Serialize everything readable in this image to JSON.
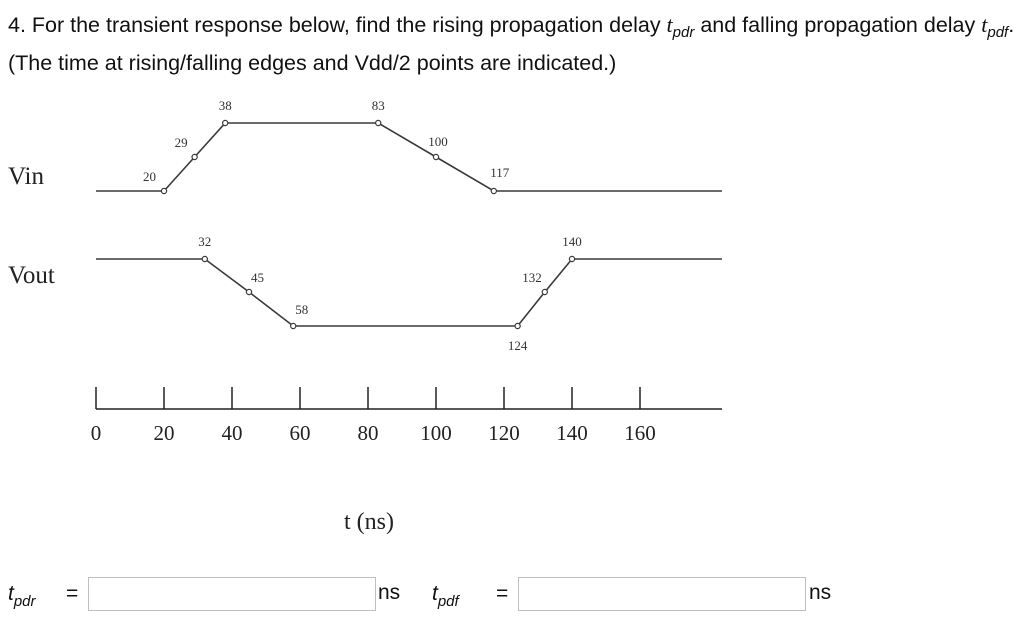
{
  "question": {
    "prefix": "4. For the transient response below, find the rising propagation delay ",
    "t": "t",
    "pdr": "pdr",
    "mid": " and falling propagation delay ",
    "pdf": "pdf",
    "suffix": ". (The time at rising/falling edges and Vdd/2 points are indicated.)"
  },
  "signals": {
    "vin": {
      "label": "Vin",
      "points": [
        {
          "t": 20,
          "level": "low",
          "label": "20"
        },
        {
          "t": 29,
          "level": "mid",
          "label": "29"
        },
        {
          "t": 38,
          "level": "high",
          "label": "38"
        },
        {
          "t": 83,
          "level": "high",
          "label": "83"
        },
        {
          "t": 100,
          "level": "mid",
          "label": "100"
        },
        {
          "t": 117,
          "level": "low",
          "label": "117"
        }
      ]
    },
    "vout": {
      "label": "Vout",
      "points": [
        {
          "t": 32,
          "level": "high",
          "label": "32"
        },
        {
          "t": 45,
          "level": "mid",
          "label": "45"
        },
        {
          "t": 58,
          "level": "low",
          "label": "58"
        },
        {
          "t": 124,
          "level": "low",
          "label": "124"
        },
        {
          "t": 132,
          "level": "mid",
          "label": "132"
        },
        {
          "t": 140,
          "level": "high",
          "label": "140"
        }
      ]
    }
  },
  "time_axis": {
    "ticks": [
      "0",
      "20",
      "40",
      "60",
      "80",
      "100",
      "120",
      "140",
      "160"
    ],
    "title": "t (ns)"
  },
  "answers": {
    "t": "t",
    "pdr_sub": "pdr",
    "pdf_sub": "pdf",
    "equals": "=",
    "pdr_value": "",
    "pdf_value": "",
    "unit": "ns"
  },
  "colors": {
    "waveform": "#3a3a3a",
    "box_border": "#bfbfbf"
  }
}
